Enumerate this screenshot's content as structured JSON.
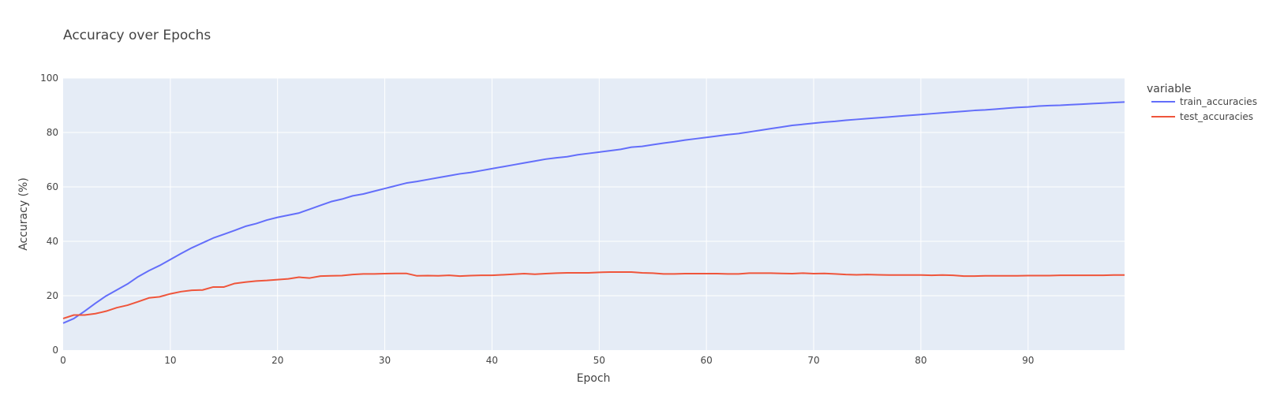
{
  "chart_data": {
    "type": "line",
    "title": "Accuracy over Epochs",
    "xlabel": "Epoch",
    "ylabel": "Accuracy (%)",
    "xlim": [
      0,
      99
    ],
    "ylim": [
      0,
      100
    ],
    "x_ticks": [
      0,
      10,
      20,
      30,
      40,
      50,
      60,
      70,
      80,
      90
    ],
    "y_ticks": [
      0,
      20,
      40,
      60,
      80,
      100
    ],
    "grid": true,
    "legend_title": "variable",
    "legend_position": "right",
    "series": [
      {
        "name": "train_accuracies",
        "color": "#636efa",
        "x": [
          0,
          1,
          2,
          3,
          4,
          5,
          6,
          7,
          8,
          9,
          10,
          11,
          12,
          13,
          14,
          15,
          16,
          17,
          18,
          19,
          20,
          21,
          22,
          23,
          24,
          25,
          26,
          27,
          28,
          29,
          30,
          31,
          32,
          33,
          34,
          35,
          36,
          37,
          38,
          39,
          40,
          41,
          42,
          43,
          44,
          45,
          46,
          47,
          48,
          49,
          50,
          51,
          52,
          53,
          54,
          55,
          56,
          57,
          58,
          59,
          60,
          61,
          62,
          63,
          64,
          65,
          66,
          67,
          68,
          69,
          70,
          71,
          72,
          73,
          74,
          75,
          76,
          77,
          78,
          79,
          80,
          81,
          82,
          83,
          84,
          85,
          86,
          87,
          88,
          89,
          90,
          91,
          92,
          93,
          94,
          95,
          96,
          97,
          98,
          99
        ],
        "values": [
          9.9,
          11.6,
          14.3,
          17.2,
          19.9,
          22.1,
          24.3,
          27.0,
          29.2,
          31.1,
          33.3,
          35.5,
          37.6,
          39.4,
          41.2,
          42.6,
          44.0,
          45.5,
          46.5,
          47.8,
          48.8,
          49.6,
          50.4,
          51.8,
          53.2,
          54.6,
          55.5,
          56.7,
          57.4,
          58.4,
          59.4,
          60.4,
          61.4,
          62.0,
          62.7,
          63.4,
          64.1,
          64.8,
          65.3,
          66.0,
          66.7,
          67.4,
          68.1,
          68.8,
          69.5,
          70.2,
          70.7,
          71.1,
          71.8,
          72.3,
          72.8,
          73.3,
          73.8,
          74.6,
          74.9,
          75.5,
          76.1,
          76.6,
          77.2,
          77.7,
          78.2,
          78.7,
          79.2,
          79.6,
          80.2,
          80.8,
          81.4,
          82.0,
          82.6,
          83.0,
          83.4,
          83.8,
          84.1,
          84.5,
          84.8,
          85.1,
          85.4,
          85.7,
          86.0,
          86.3,
          86.6,
          86.9,
          87.2,
          87.5,
          87.8,
          88.1,
          88.3,
          88.6,
          88.9,
          89.2,
          89.4,
          89.7,
          89.9,
          90.0,
          90.2,
          90.4,
          90.6,
          90.8,
          91.0,
          91.2
        ]
      },
      {
        "name": "test_accuracies",
        "color": "#ef553b",
        "x": [
          0,
          1,
          2,
          3,
          4,
          5,
          6,
          7,
          8,
          9,
          10,
          11,
          12,
          13,
          14,
          15,
          16,
          17,
          18,
          19,
          20,
          21,
          22,
          23,
          24,
          25,
          26,
          27,
          28,
          29,
          30,
          31,
          32,
          33,
          34,
          35,
          36,
          37,
          38,
          39,
          40,
          41,
          42,
          43,
          44,
          45,
          46,
          47,
          48,
          49,
          50,
          51,
          52,
          53,
          54,
          55,
          56,
          57,
          58,
          59,
          60,
          61,
          62,
          63,
          64,
          65,
          66,
          67,
          68,
          69,
          70,
          71,
          72,
          73,
          74,
          75,
          76,
          77,
          78,
          79,
          80,
          81,
          82,
          83,
          84,
          85,
          86,
          87,
          88,
          89,
          90,
          91,
          92,
          93,
          94,
          95,
          96,
          97,
          98,
          99
        ],
        "values": [
          11.6,
          12.9,
          12.9,
          13.4,
          14.3,
          15.6,
          16.5,
          17.8,
          19.2,
          19.6,
          20.7,
          21.5,
          22.0,
          22.1,
          23.2,
          23.2,
          24.5,
          25.0,
          25.4,
          25.6,
          25.9,
          26.2,
          26.8,
          26.5,
          27.2,
          27.3,
          27.4,
          27.8,
          28.0,
          28.0,
          28.1,
          28.2,
          28.2,
          27.3,
          27.4,
          27.3,
          27.5,
          27.2,
          27.4,
          27.5,
          27.5,
          27.7,
          27.9,
          28.1,
          27.9,
          28.1,
          28.3,
          28.4,
          28.4,
          28.4,
          28.6,
          28.7,
          28.7,
          28.7,
          28.4,
          28.3,
          28.0,
          28.0,
          28.1,
          28.1,
          28.1,
          28.1,
          28.0,
          28.0,
          28.3,
          28.3,
          28.3,
          28.2,
          28.1,
          28.3,
          28.1,
          28.2,
          28.0,
          27.8,
          27.7,
          27.8,
          27.7,
          27.6,
          27.6,
          27.6,
          27.6,
          27.5,
          27.6,
          27.5,
          27.2,
          27.2,
          27.3,
          27.3,
          27.3,
          27.3,
          27.4,
          27.4,
          27.4,
          27.5,
          27.5,
          27.5,
          27.5,
          27.5,
          27.6,
          27.6
        ]
      }
    ]
  }
}
